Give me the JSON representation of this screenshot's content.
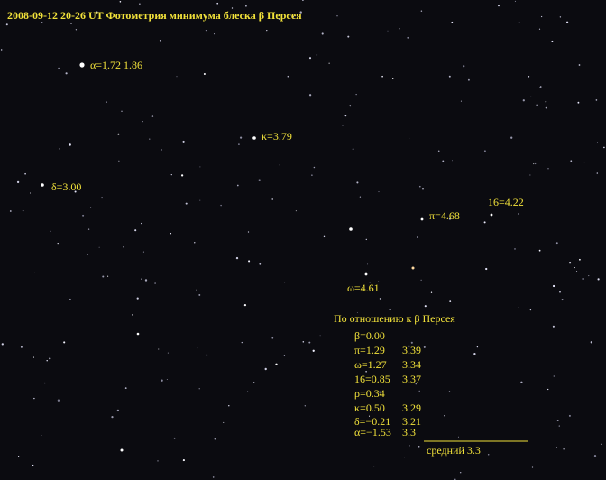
{
  "header": {
    "title": "2008-09-12 20-26 UT  Фотометрия минимума блеска β Персея"
  },
  "star_labels": [
    "α=1.72 1.86",
    "κ=3.79",
    "δ=3.00",
    "16=4.22",
    "π=4.68",
    "ω=4.61"
  ],
  "table": {
    "title": "По отношению к β Персея",
    "rows": [
      {
        "label": "β=0.00"
      },
      {
        "label": "π=1.29",
        "value": "3.39"
      },
      {
        "label": "ω=1.27",
        "value": "3.34"
      },
      {
        "label": "16=0.85",
        "value": "3.37"
      },
      {
        "label": "ρ=0.34"
      },
      {
        "label": "κ=0.50",
        "value": "3.29"
      },
      {
        "label": "δ=−0.21",
        "value": "3.21"
      },
      {
        "label": "α=−1.53",
        "value": "3.3"
      }
    ],
    "footer": "средний 3.3"
  }
}
